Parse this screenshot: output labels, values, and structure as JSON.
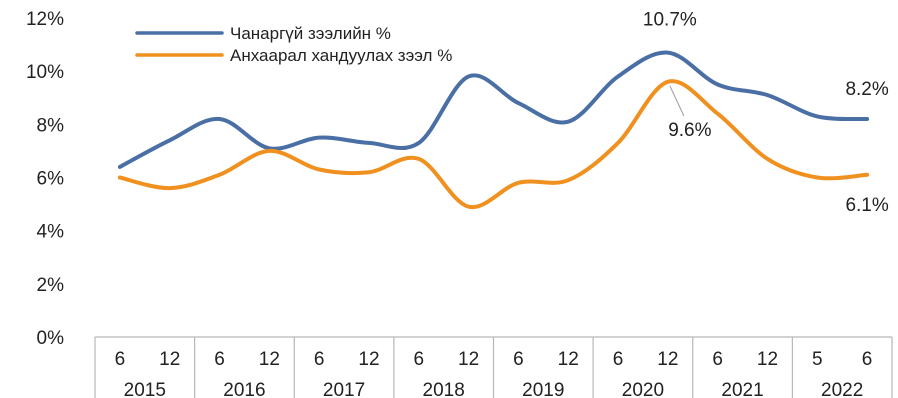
{
  "chart_data": {
    "type": "line",
    "title": "",
    "xlabel": "",
    "ylabel": "",
    "ylim": [
      0,
      12
    ],
    "y_ticks": [
      "0%",
      "2%",
      "4%",
      "6%",
      "8%",
      "10%",
      "12%"
    ],
    "grid": false,
    "legend_position": "top-left",
    "x_month_labels": [
      "6",
      "12",
      "6",
      "12",
      "6",
      "12",
      "6",
      "12",
      "6",
      "12",
      "6",
      "12",
      "6",
      "12",
      "5",
      "6"
    ],
    "x_year_labels": [
      "2015",
      "2016",
      "2017",
      "2018",
      "2019",
      "2020",
      "2021",
      "2022"
    ],
    "series": [
      {
        "name": "Чанаргүй зээлийн %",
        "color": "#4a6fa5",
        "values": [
          6.4,
          7.4,
          8.2,
          7.1,
          7.5,
          7.3,
          7.3,
          9.8,
          8.8,
          8.1,
          9.8,
          10.7,
          9.5,
          9.1,
          8.3,
          8.2
        ]
      },
      {
        "name": "Анхаарал хандуулах зээл %",
        "color": "#f0901e",
        "values": [
          6.0,
          5.6,
          6.1,
          7.0,
          6.3,
          6.2,
          6.7,
          4.9,
          5.8,
          5.9,
          7.3,
          9.6,
          8.4,
          6.7,
          6.0,
          6.1
        ]
      }
    ],
    "annotations": [
      {
        "text": "10.7%",
        "series": 0,
        "index": 11
      },
      {
        "text": "9.6%",
        "series": 1,
        "index": 11
      },
      {
        "text": "8.2%",
        "series": 0,
        "index": 15
      },
      {
        "text": "6.1%",
        "series": 1,
        "index": 15
      }
    ]
  }
}
